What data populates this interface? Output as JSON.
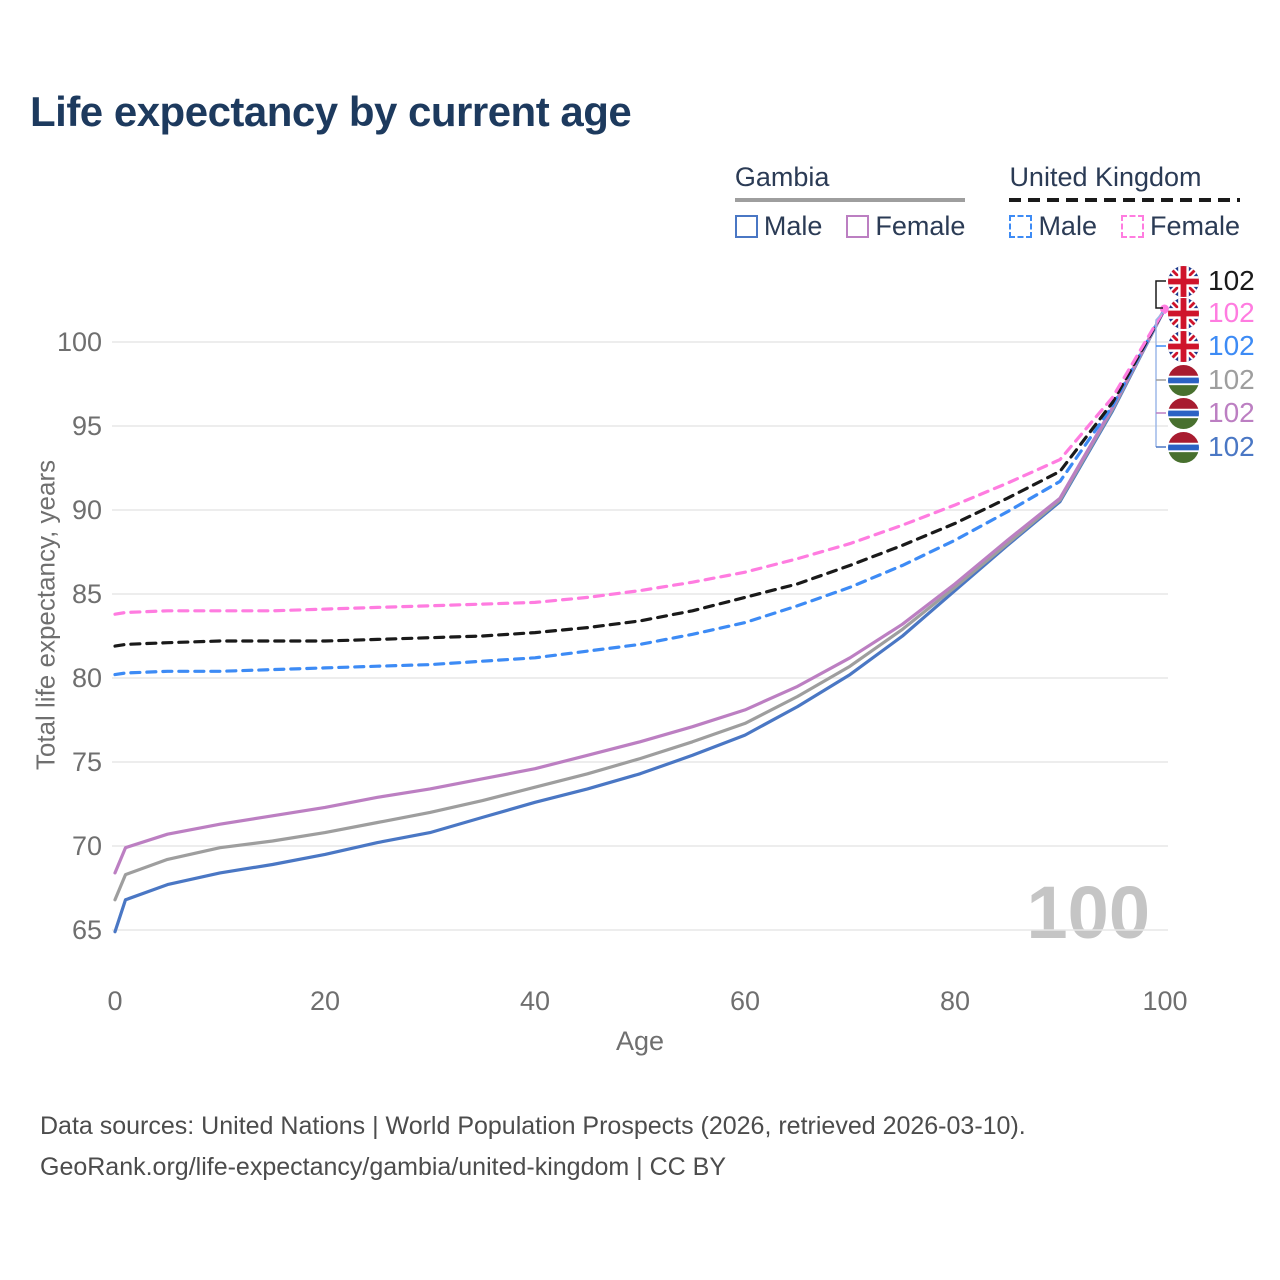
{
  "title": "Life expectancy by current age",
  "legend": {
    "groups": [
      {
        "country": "Gambia",
        "line_style": "solid",
        "underline_color": "#9e9e9e",
        "items": [
          {
            "label": "Male",
            "color": "#4a77c4"
          },
          {
            "label": "Female",
            "color": "#bc7fc2"
          }
        ]
      },
      {
        "country": "United Kingdom",
        "line_style": "dashed",
        "underline_color": "#1a1a1a",
        "items": [
          {
            "label": "Male",
            "color": "#3d8bf5"
          },
          {
            "label": "Female",
            "color": "#ff7ce0"
          }
        ]
      }
    ]
  },
  "watermark": "100",
  "y_axis": {
    "title": "Total life expectancy, years",
    "ticks": [
      100,
      95,
      90,
      85,
      80,
      75,
      70,
      65
    ]
  },
  "x_axis": {
    "title": "Age",
    "ticks": [
      0,
      20,
      40,
      60,
      80,
      100
    ]
  },
  "end_labels": [
    {
      "flag": "uk",
      "value": "102",
      "color": "#1a1a1a"
    },
    {
      "flag": "uk",
      "value": "102",
      "color": "#ff7ce0"
    },
    {
      "flag": "uk",
      "value": "102",
      "color": "#3d8bf5"
    },
    {
      "flag": "gambia",
      "value": "102",
      "color": "#9e9e9e"
    },
    {
      "flag": "gambia",
      "value": "102",
      "color": "#bc7fc2"
    },
    {
      "flag": "gambia",
      "value": "102",
      "color": "#4a77c4"
    }
  ],
  "footer": {
    "line1": "Data sources: United Nations | World Population Prospects (2026, retrieved 2026-03-10).",
    "line2": "GeoRank.org/life-expectancy/gambia/united-kingdom | CC BY"
  },
  "chart_data": {
    "type": "line",
    "title": "Life expectancy by current age",
    "xlabel": "Age",
    "ylabel": "Total life expectancy, years",
    "xlim": [
      0,
      100
    ],
    "ylim": [
      63,
      103
    ],
    "grid": "horizontal",
    "legend_position": "top-right",
    "x": [
      0,
      1,
      5,
      10,
      15,
      20,
      25,
      30,
      35,
      40,
      45,
      50,
      55,
      60,
      65,
      70,
      75,
      80,
      85,
      90,
      95,
      100
    ],
    "series": [
      {
        "id": "gambia-male",
        "name": "Gambia Male",
        "style": "solid",
        "color": "#4a77c4",
        "values": [
          64.9,
          66.8,
          67.7,
          68.4,
          68.9,
          69.5,
          70.2,
          70.8,
          71.7,
          72.6,
          73.4,
          74.3,
          75.4,
          76.6,
          78.3,
          80.2,
          82.5,
          85.2,
          87.9,
          90.5,
          95.9,
          102
        ]
      },
      {
        "id": "gambia-total",
        "name": "Gambia (both sexes)",
        "style": "solid",
        "color": "#9e9e9e",
        "values": [
          66.8,
          68.3,
          69.2,
          69.9,
          70.3,
          70.8,
          71.4,
          72.0,
          72.7,
          73.5,
          74.3,
          75.2,
          76.2,
          77.3,
          78.9,
          80.7,
          82.9,
          85.4,
          88.0,
          90.6,
          96.0,
          102
        ]
      },
      {
        "id": "gambia-female",
        "name": "Gambia Female",
        "style": "solid",
        "color": "#bc7fc2",
        "values": [
          68.4,
          69.9,
          70.7,
          71.3,
          71.8,
          72.3,
          72.9,
          73.4,
          74.0,
          74.6,
          75.4,
          76.2,
          77.1,
          78.1,
          79.5,
          81.2,
          83.2,
          85.6,
          88.2,
          90.7,
          96.1,
          102
        ]
      },
      {
        "id": "uk-male",
        "name": "United Kingdom Male",
        "style": "dashed",
        "color": "#3d8bf5",
        "values": [
          80.2,
          80.3,
          80.4,
          80.4,
          80.5,
          80.6,
          80.7,
          80.8,
          81.0,
          81.2,
          81.6,
          82.0,
          82.6,
          83.3,
          84.3,
          85.4,
          86.7,
          88.2,
          89.9,
          91.7,
          96.2,
          102
        ]
      },
      {
        "id": "uk-total",
        "name": "United Kingdom (both sexes)",
        "style": "dashed",
        "color": "#1a1a1a",
        "values": [
          81.9,
          82.0,
          82.1,
          82.2,
          82.2,
          82.2,
          82.3,
          82.4,
          82.5,
          82.7,
          83.0,
          83.4,
          84.0,
          84.8,
          85.6,
          86.7,
          87.9,
          89.2,
          90.7,
          92.3,
          96.4,
          102
        ]
      },
      {
        "id": "uk-female",
        "name": "United Kingdom Female",
        "style": "dashed",
        "color": "#ff7ce0",
        "values": [
          83.8,
          83.9,
          84.0,
          84.0,
          84.0,
          84.1,
          84.2,
          84.3,
          84.4,
          84.5,
          84.8,
          85.2,
          85.7,
          86.3,
          87.1,
          88.0,
          89.1,
          90.3,
          91.6,
          93.0,
          96.7,
          102
        ]
      }
    ],
    "end_value_label": 102
  }
}
